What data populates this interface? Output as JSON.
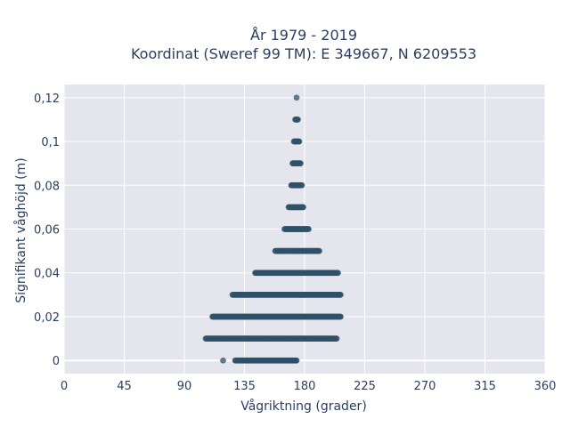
{
  "chart_data": {
    "type": "scatter",
    "title_lines": [
      "År 1979 - 2019",
      "Koordinat (Sweref 99 TM): E 349667, N 6209553"
    ],
    "xlabel": "Vågriktning (grader)",
    "ylabel": "Signifikant våghöjd (m)",
    "xlim": [
      0,
      360
    ],
    "ylim": [
      -0.006,
      0.126
    ],
    "x_ticks": [
      0,
      45,
      90,
      135,
      180,
      225,
      270,
      315,
      360
    ],
    "x_tick_labels": [
      "0",
      "45",
      "90",
      "135",
      "180",
      "225",
      "270",
      "315",
      "360"
    ],
    "y_ticks": [
      0,
      0.02,
      0.04,
      0.06,
      0.08,
      0.1,
      0.12
    ],
    "y_tick_labels": [
      "0",
      "0,02",
      "0,04",
      "0,06",
      "0,08",
      "0,1",
      "0,12"
    ],
    "grid": true,
    "marker_color": "#2f5168",
    "background_color": "#e5e5ee",
    "series": [
      {
        "bands": [
          {
            "y": 0,
            "x_ranges": [
              [
                119,
                119
              ],
              [
                128,
                174
              ]
            ]
          },
          {
            "y": 0.01,
            "x_ranges": [
              [
                106,
                204
              ]
            ]
          },
          {
            "y": 0.02,
            "x_ranges": [
              [
                111,
                207
              ]
            ]
          },
          {
            "y": 0.03,
            "x_ranges": [
              [
                126,
                207
              ]
            ]
          },
          {
            "y": 0.04,
            "x_ranges": [
              [
                143,
                205
              ]
            ]
          },
          {
            "y": 0.05,
            "x_ranges": [
              [
                158,
                191
              ]
            ]
          },
          {
            "y": 0.06,
            "x_ranges": [
              [
                165,
                183
              ]
            ]
          },
          {
            "y": 0.07,
            "x_ranges": [
              [
                168,
                179
              ]
            ]
          },
          {
            "y": 0.08,
            "x_ranges": [
              [
                170,
                178
              ]
            ]
          },
          {
            "y": 0.09,
            "x_ranges": [
              [
                171,
                177
              ]
            ]
          },
          {
            "y": 0.1,
            "x_ranges": [
              [
                172,
                176
              ]
            ]
          },
          {
            "y": 0.11,
            "x_ranges": [
              [
                173,
                175
              ]
            ]
          },
          {
            "y": 0.12,
            "x_ranges": [
              [
                174,
                174
              ]
            ]
          }
        ]
      }
    ]
  }
}
